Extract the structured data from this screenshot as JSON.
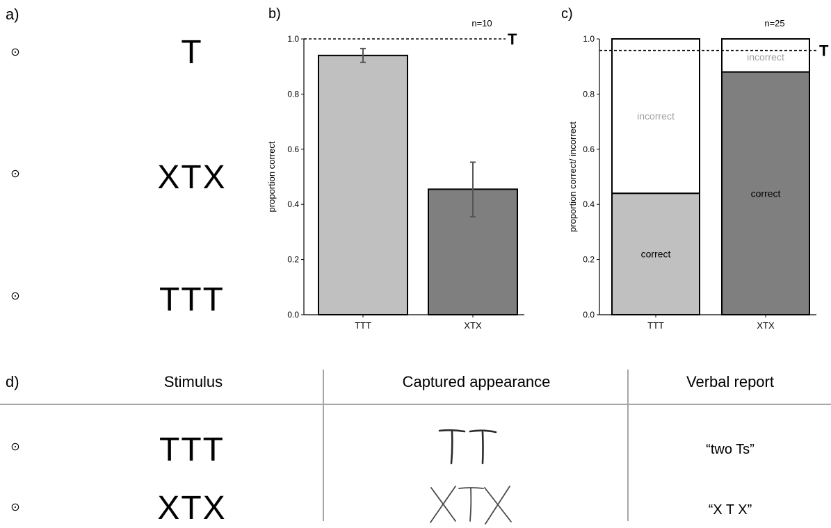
{
  "panel_a": {
    "label": "a)",
    "fixation_glyph": "⊙",
    "stimuli": [
      "T",
      "XTX",
      "TTT"
    ]
  },
  "panel_d": {
    "label": "d)",
    "headers": [
      "Stimulus",
      "Captured appearance",
      "Verbal report"
    ],
    "fixation_glyph": "⊙",
    "rows": [
      {
        "stimulus": "TTT",
        "captured": "TT",
        "report": "“two Ts”"
      },
      {
        "stimulus": "XTX",
        "captured": "XTX",
        "report": "“X T X”"
      }
    ]
  },
  "colors": {
    "light_bar": "#c0c0c0",
    "dark_bar": "#7f7f7f",
    "incorrect_text": "#a0a0a0",
    "divider": "#a6a6a6"
  },
  "chart_data": [
    {
      "panel_label": "b)",
      "type": "bar",
      "categories": [
        "TTT",
        "XTX"
      ],
      "values": [
        0.94,
        0.455
      ],
      "error": [
        [
          0.915,
          0.965
        ],
        [
          0.355,
          0.553
        ]
      ],
      "ylabel": "proportion correct",
      "ylim": [
        0,
        1.0
      ],
      "yticks": [
        "0.0",
        "0.2",
        "0.4",
        "0.6",
        "0.8",
        "1.0"
      ],
      "reference_line": {
        "value": 1.0,
        "label": "T",
        "style": "dashed"
      },
      "annotation": "n=10"
    },
    {
      "panel_label": "c)",
      "type": "bar",
      "stacked": true,
      "categories": [
        "TTT",
        "XTX"
      ],
      "series": [
        {
          "name": "correct",
          "values": [
            0.44,
            0.88
          ]
        },
        {
          "name": "incorrect",
          "values": [
            0.56,
            0.12
          ]
        }
      ],
      "ylabel": "proportion correct/ incorrect",
      "ylim": [
        0,
        1.0
      ],
      "yticks": [
        "0.0",
        "0.2",
        "0.4",
        "0.6",
        "0.8",
        "1.0"
      ],
      "reference_line": {
        "value": 0.958,
        "label": "T",
        "style": "dashed"
      },
      "annotation": "n=25"
    }
  ]
}
